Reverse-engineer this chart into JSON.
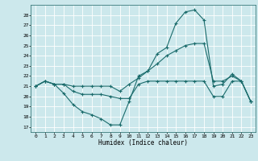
{
  "xlabel": "Humidex (Indice chaleur)",
  "bg_color": "#cce8ec",
  "grid_color": "#ffffff",
  "line_color": "#1a6b6b",
  "xlim": [
    -0.5,
    23.5
  ],
  "ylim": [
    16.5,
    29.0
  ],
  "xticks": [
    0,
    1,
    2,
    3,
    4,
    5,
    6,
    7,
    8,
    9,
    10,
    11,
    12,
    13,
    14,
    15,
    16,
    17,
    18,
    19,
    20,
    21,
    22,
    23
  ],
  "yticks": [
    17,
    18,
    19,
    20,
    21,
    22,
    23,
    24,
    25,
    26,
    27,
    28
  ],
  "line1_x": [
    0,
    1,
    2,
    3,
    4,
    5,
    6,
    7,
    8,
    9,
    10,
    11,
    12,
    13,
    14,
    15,
    16,
    17,
    18,
    19,
    20,
    21,
    22,
    23
  ],
  "line1_y": [
    21.0,
    21.5,
    21.2,
    20.3,
    19.2,
    18.5,
    18.2,
    17.8,
    17.2,
    17.2,
    19.5,
    22.0,
    22.5,
    24.2,
    24.8,
    27.2,
    28.3,
    28.5,
    27.5,
    21.0,
    21.2,
    22.2,
    21.5,
    19.5
  ],
  "line2_x": [
    0,
    1,
    2,
    3,
    4,
    5,
    6,
    7,
    8,
    9,
    10,
    11,
    12,
    13,
    14,
    15,
    16,
    17,
    18,
    19,
    20,
    21,
    22,
    23
  ],
  "line2_y": [
    21.0,
    21.5,
    21.2,
    21.2,
    20.5,
    20.2,
    20.2,
    20.2,
    20.0,
    19.8,
    19.8,
    21.2,
    21.5,
    21.5,
    21.5,
    21.5,
    21.5,
    21.5,
    21.5,
    20.0,
    20.0,
    21.5,
    21.5,
    19.5
  ],
  "line3_x": [
    0,
    1,
    2,
    3,
    4,
    5,
    6,
    7,
    8,
    9,
    10,
    11,
    12,
    13,
    14,
    15,
    16,
    17,
    18,
    19,
    20,
    21,
    22,
    23
  ],
  "line3_y": [
    21.0,
    21.5,
    21.2,
    21.2,
    21.0,
    21.0,
    21.0,
    21.0,
    21.0,
    20.5,
    21.2,
    21.8,
    22.5,
    23.2,
    24.0,
    24.5,
    25.0,
    25.2,
    25.2,
    21.5,
    21.5,
    22.0,
    21.5,
    19.5
  ]
}
